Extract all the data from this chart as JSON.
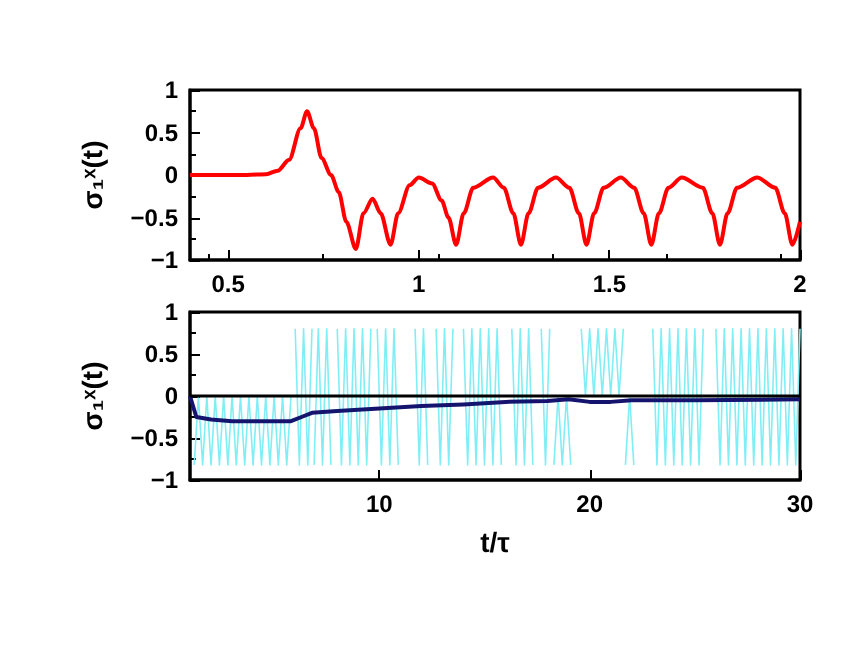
{
  "chart_data": [
    {
      "type": "line",
      "ylabel": "σ₁ˣ(t)",
      "color": "#ff0000",
      "x": [
        0.4,
        0.55,
        0.6,
        0.63,
        0.66,
        0.69,
        0.707,
        0.725,
        0.745,
        0.77,
        0.79,
        0.81,
        0.835,
        0.855,
        0.879,
        0.9,
        0.926,
        0.946,
        0.976,
        1.0,
        1.035,
        1.06,
        1.078,
        1.098,
        1.118,
        1.143,
        1.195,
        1.223,
        1.248,
        1.268,
        1.288,
        1.313,
        1.36,
        1.395,
        1.42,
        1.44,
        1.46,
        1.485,
        1.53,
        1.565,
        1.59,
        1.61,
        1.63,
        1.655,
        1.69,
        1.745,
        1.77,
        1.79,
        1.81,
        1.835,
        1.888,
        1.935,
        1.96,
        1.98,
        2.0
      ],
      "values": [
        0,
        0,
        0.01,
        0.05,
        0.18,
        0.55,
        0.75,
        0.55,
        0.2,
        0,
        -0.2,
        -0.55,
        -0.87,
        -0.45,
        -0.28,
        -0.45,
        -0.82,
        -0.45,
        -0.12,
        -0.03,
        -0.1,
        -0.3,
        -0.5,
        -0.82,
        -0.45,
        -0.15,
        -0.03,
        -0.15,
        -0.45,
        -0.82,
        -0.45,
        -0.15,
        -0.03,
        -0.15,
        -0.45,
        -0.82,
        -0.45,
        -0.15,
        -0.03,
        -0.15,
        -0.45,
        -0.82,
        -0.45,
        -0.15,
        -0.03,
        -0.15,
        -0.45,
        -0.82,
        -0.45,
        -0.15,
        -0.03,
        -0.15,
        -0.45,
        -0.82,
        -0.55
      ],
      "xlim": [
        0.4,
        2
      ],
      "xticks": [
        0.5,
        1,
        1.5,
        2
      ],
      "ylim": [
        -1,
        1
      ],
      "yticks": [
        -1,
        -0.5,
        0,
        0.5,
        1
      ],
      "grid": false
    },
    {
      "type": "line",
      "ylabel": "σ₁ˣ(t)",
      "xlabel": "t/τ",
      "xlim": [
        1,
        30
      ],
      "xticks": [
        10,
        20,
        30
      ],
      "ylim": [
        -1,
        1
      ],
      "yticks": [
        -1,
        -0.5,
        0,
        0.5,
        1
      ],
      "grid": false,
      "ref_lines": [
        {
          "axis": "y",
          "value": 0,
          "color": "#000000"
        }
      ],
      "series": [
        {
          "color": "#80eef5",
          "x": [
            1.2,
            1.4,
            1.6,
            1.8,
            2,
            2.2,
            2.4,
            2.6,
            2.8,
            3,
            3.2,
            3.4,
            3.6,
            3.8,
            4,
            4.2,
            4.4,
            4.6,
            4.8,
            5,
            5.2,
            5.4,
            5.6,
            5.8,
            5.9,
            6,
            6.2,
            6.4,
            6.6,
            6.8,
            6.85,
            6.9,
            7.1,
            7.3,
            7.5,
            7.7,
            7.85,
            8,
            8.2,
            8.4,
            8.6,
            8.8,
            9,
            9.2,
            9.4,
            9.6,
            9.75,
            9.9,
            10.1,
            10.3,
            10.5,
            10.7,
            10.9,
            11.3,
            11.7,
            11.9,
            12.1,
            12.3,
            12.5,
            12.7,
            12.9,
            13.1,
            13.3,
            13.5,
            13.8,
            14,
            14.2,
            14.4,
            14.6,
            14.8,
            15,
            15.2,
            15.4,
            15.6,
            15.8,
            16.1,
            16.3,
            16.5,
            16.7,
            16.9,
            17.1,
            17.3,
            17.5,
            17.7,
            17.9,
            18.1,
            18.2,
            18.3,
            18.5,
            18.7,
            18.9,
            19.1,
            19.4,
            19.6,
            19.8,
            20,
            20.2,
            20.4,
            20.6,
            20.8,
            21,
            21.2,
            21.4,
            21.6,
            21.65,
            21.7,
            21.9,
            22.1,
            22.5,
            23,
            23.2,
            23.4,
            23.6,
            23.8,
            24,
            24.2,
            24.4,
            24.6,
            24.8,
            25,
            25.2,
            25.4,
            25.7,
            26,
            26.2,
            26.4,
            26.6,
            26.8,
            27,
            27.2,
            27.4,
            27.6,
            27.8,
            28,
            28.2,
            28.4,
            28.6,
            28.8,
            29,
            29.2,
            29.4,
            29.6,
            29.8,
            30
          ],
          "values": [
            -0.82,
            0,
            -0.82,
            0,
            -0.82,
            0,
            -0.82,
            0,
            -0.82,
            0,
            -0.82,
            0,
            -0.82,
            0,
            -0.82,
            0,
            -0.82,
            0,
            -0.82,
            0,
            -0.82,
            0,
            -0.82,
            0,
            null,
            0.8,
            -0.82,
            0.8,
            -0.82,
            0.8,
            null,
            -0.82,
            0.8,
            -0.82,
            0.8,
            -0.82,
            null,
            0.8,
            -0.82,
            0.8,
            -0.82,
            0.8,
            -0.82,
            0.8,
            -0.82,
            0.8,
            null,
            0.8,
            -0.82,
            0.8,
            -0.82,
            0.8,
            -0.82,
            null,
            0.8,
            -0.82,
            0.8,
            -0.82,
            null,
            0.8,
            -0.82,
            0.8,
            -0.82,
            0.8,
            null,
            0.8,
            -0.82,
            0.8,
            -0.82,
            0.8,
            -0.82,
            0.8,
            -0.82,
            0.8,
            -0.82,
            null,
            0.8,
            -0.82,
            0.8,
            -0.82,
            0.8,
            -0.82,
            null,
            0.8,
            -0.82,
            0.8,
            null,
            -0.82,
            0,
            -0.82,
            0,
            -0.82,
            null,
            0.8,
            0,
            0.8,
            0,
            0.8,
            0,
            0.8,
            0,
            0.8,
            0,
            0.8,
            null,
            -0.82,
            0,
            -0.82,
            null,
            0.8,
            -0.82,
            0.8,
            -0.82,
            0.8,
            -0.82,
            0.8,
            -0.82,
            0.8,
            -0.82,
            0.8,
            -0.82,
            0.8,
            null,
            0.8,
            -0.82,
            0.8,
            -0.82,
            0.8,
            -0.82,
            0.8,
            -0.82,
            0.8,
            -0.82,
            0.8,
            -0.82,
            0.8,
            -0.82,
            0.8,
            -0.82,
            0.8,
            -0.82,
            0.8,
            -0.82,
            0.8
          ]
        },
        {
          "color": "#14146e",
          "x": [
            1,
            1.3,
            2,
            3,
            4,
            5,
            5.8,
            6.3,
            6.8,
            8,
            10,
            12,
            14,
            16,
            18,
            19,
            20,
            21,
            22,
            25,
            30
          ],
          "values": [
            0,
            -0.25,
            -0.28,
            -0.3,
            -0.3,
            -0.3,
            -0.3,
            -0.25,
            -0.2,
            -0.18,
            -0.15,
            -0.12,
            -0.1,
            -0.07,
            -0.06,
            -0.04,
            -0.07,
            -0.07,
            -0.05,
            -0.05,
            -0.04
          ]
        }
      ]
    }
  ]
}
